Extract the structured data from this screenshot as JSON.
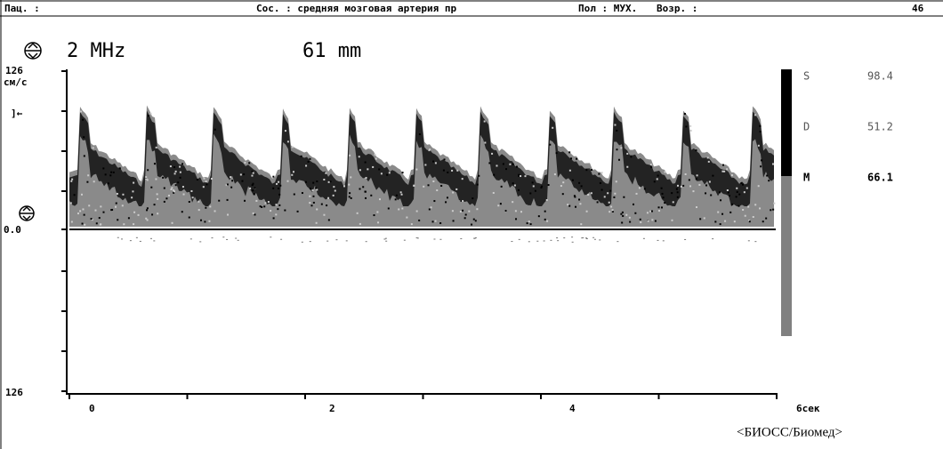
{
  "header": {
    "patient": "Пац. :",
    "vessel": "Сос. : средняя мозговая артерия пр",
    "sex": "Пол : МУХ.",
    "age_label": "Возр. :",
    "age": "46"
  },
  "probe": {
    "frequency": "2 MHz",
    "depth": "61 mm"
  },
  "axis": {
    "top": "126",
    "unit": "см/с",
    "marker": "]←",
    "zero": "0.0",
    "bottom": "126",
    "xticks": [
      "0",
      "2",
      "4",
      "6сек"
    ]
  },
  "indices": [
    {
      "name": "S",
      "value": "98.4"
    },
    {
      "name": "D",
      "value": "51.2"
    },
    {
      "name": "M",
      "value": "66.1"
    }
  ],
  "footer": "<БИОСС/Биомед>"
}
